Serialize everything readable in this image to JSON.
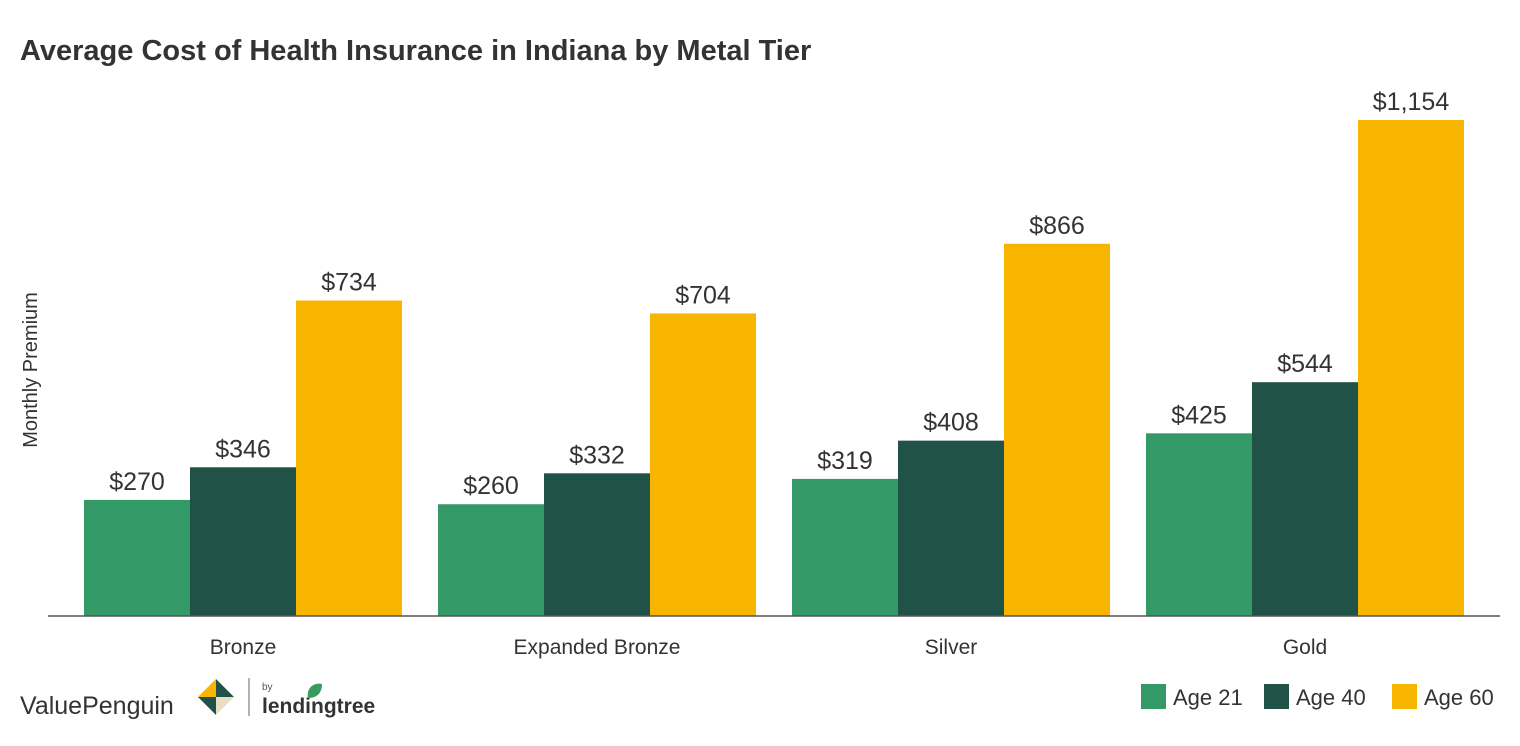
{
  "chart_data": {
    "type": "bar",
    "title": "Average Cost of Health Insurance in Indiana by Metal Tier",
    "xlabel": "",
    "ylabel": "Monthly Premium",
    "ylim": [
      0,
      1250
    ],
    "grid": false,
    "legend_position": "bottom-right",
    "categories": [
      "Bronze",
      "Expanded Bronze",
      "Silver",
      "Gold"
    ],
    "series": [
      {
        "name": "Age 21",
        "color": "#339966",
        "values": [
          270,
          260,
          319,
          425
        ],
        "labels": [
          "$270",
          "$260",
          "$319",
          "$425"
        ]
      },
      {
        "name": "Age 40",
        "color": "#215248",
        "values": [
          346,
          332,
          408,
          544
        ],
        "labels": [
          "$346",
          "$332",
          "$408",
          "$544"
        ]
      },
      {
        "name": "Age 60",
        "color": "#F8B500",
        "values": [
          734,
          704,
          866,
          1154
        ],
        "labels": [
          "$734",
          "$704",
          "$866",
          "$1,154"
        ]
      }
    ]
  },
  "branding": {
    "valuepenguin": "ValuePenguin",
    "by": "by",
    "lendingtree": "lendingtree",
    "logo_colors": [
      "#215248",
      "#F8B500",
      "#333333"
    ]
  }
}
